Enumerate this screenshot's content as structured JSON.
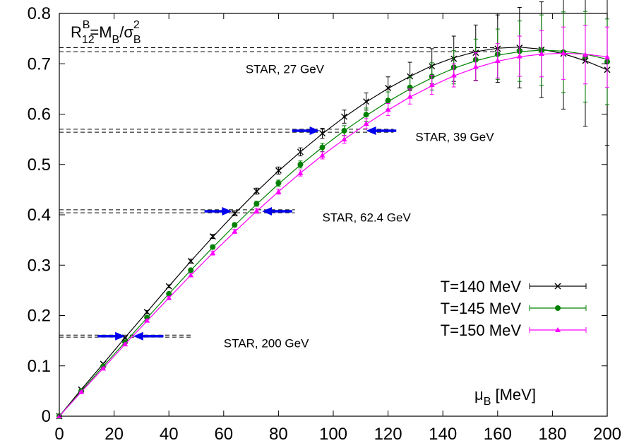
{
  "chart_data": {
    "type": "line",
    "title_parts": {
      "base": "R",
      "sub": "12",
      "sup": "B",
      "eq": "=M",
      "eq_sub": "B",
      "slash": "/σ",
      "sig_sup": "2",
      "sig_sub": "B"
    },
    "xlabel_parts": {
      "base": "μ",
      "sub": "B",
      "unit": " [MeV]"
    },
    "xlim": [
      0,
      200
    ],
    "ylim": [
      0,
      0.8
    ],
    "xticks": [
      "0",
      "20",
      "40",
      "60",
      "80",
      "100",
      "120",
      "140",
      "160",
      "180",
      "200"
    ],
    "yticks": [
      "0",
      "0.1",
      "0.2",
      "0.3",
      "0.4",
      "0.5",
      "0.6",
      "0.7",
      "0.8"
    ],
    "grid": false,
    "legend_position": "right",
    "series": [
      {
        "name": "T=140 MeV",
        "color": "#000000",
        "marker": "cross",
        "x": [
          0,
          8,
          16,
          24,
          32,
          40,
          48,
          56,
          64,
          72,
          80,
          88,
          96,
          104,
          112,
          120,
          128,
          136,
          144,
          152,
          160,
          168,
          176,
          184,
          192,
          200
        ],
        "y": [
          0,
          0.053,
          0.104,
          0.156,
          0.207,
          0.258,
          0.308,
          0.357,
          0.403,
          0.447,
          0.488,
          0.525,
          0.562,
          0.595,
          0.625,
          0.652,
          0.675,
          0.695,
          0.71,
          0.722,
          0.73,
          0.732,
          0.728,
          0.72,
          0.706,
          0.688
        ],
        "err": [
          0,
          0.001,
          0.002,
          0.002,
          0.003,
          0.003,
          0.004,
          0.004,
          0.005,
          0.006,
          0.007,
          0.008,
          0.01,
          0.013,
          0.017,
          0.022,
          0.028,
          0.035,
          0.045,
          0.055,
          0.067,
          0.08,
          0.095,
          0.11,
          0.13,
          0.15
        ],
        "curve_y": [
          0,
          0.053,
          0.104,
          0.156,
          0.207,
          0.258,
          0.308,
          0.356,
          0.402,
          0.446,
          0.487,
          0.525,
          0.561,
          0.594,
          0.624,
          0.651,
          0.675,
          0.696,
          0.712,
          0.724,
          0.731,
          0.733,
          0.729,
          0.72,
          0.706,
          0.688
        ]
      },
      {
        "name": "T=145 MeV",
        "color": "#008000",
        "marker": "circle",
        "x": [
          0,
          8,
          16,
          24,
          32,
          40,
          48,
          56,
          64,
          72,
          80,
          88,
          96,
          104,
          112,
          120,
          128,
          136,
          144,
          152,
          160,
          168,
          176,
          184,
          192,
          200
        ],
        "y": [
          0,
          0.05,
          0.099,
          0.147,
          0.196,
          0.243,
          0.29,
          0.336,
          0.38,
          0.422,
          0.463,
          0.5,
          0.534,
          0.567,
          0.599,
          0.627,
          0.653,
          0.675,
          0.693,
          0.708,
          0.719,
          0.725,
          0.727,
          0.723,
          0.714,
          0.704
        ],
        "err": [
          0,
          0.001,
          0.002,
          0.002,
          0.003,
          0.003,
          0.003,
          0.004,
          0.004,
          0.005,
          0.006,
          0.007,
          0.008,
          0.01,
          0.013,
          0.017,
          0.021,
          0.027,
          0.033,
          0.041,
          0.05,
          0.06,
          0.07,
          0.08,
          0.09,
          0.085
        ],
        "curve_y": [
          0,
          0.05,
          0.099,
          0.147,
          0.195,
          0.243,
          0.29,
          0.335,
          0.379,
          0.421,
          0.461,
          0.499,
          0.534,
          0.567,
          0.597,
          0.625,
          0.65,
          0.672,
          0.691,
          0.706,
          0.717,
          0.724,
          0.727,
          0.725,
          0.719,
          0.709
        ]
      },
      {
        "name": "T=150 MeV",
        "color": "#ff00ff",
        "marker": "triangle",
        "x": [
          0,
          8,
          16,
          24,
          32,
          40,
          48,
          56,
          64,
          72,
          80,
          88,
          96,
          104,
          112,
          120,
          128,
          136,
          144,
          152,
          160,
          168,
          176,
          184,
          192,
          200
        ],
        "y": [
          0,
          0.048,
          0.095,
          0.143,
          0.19,
          0.235,
          0.28,
          0.324,
          0.367,
          0.408,
          0.446,
          0.483,
          0.518,
          0.55,
          0.581,
          0.609,
          0.635,
          0.658,
          0.677,
          0.694,
          0.706,
          0.715,
          0.72,
          0.721,
          0.718,
          0.713
        ],
        "err": [
          0,
          0.001,
          0.001,
          0.002,
          0.002,
          0.003,
          0.003,
          0.004,
          0.004,
          0.005,
          0.005,
          0.006,
          0.007,
          0.008,
          0.01,
          0.012,
          0.015,
          0.019,
          0.023,
          0.028,
          0.034,
          0.04,
          0.046,
          0.052,
          0.058,
          0.06
        ],
        "curve_y": [
          0,
          0.048,
          0.095,
          0.143,
          0.189,
          0.235,
          0.28,
          0.324,
          0.366,
          0.407,
          0.446,
          0.483,
          0.518,
          0.55,
          0.58,
          0.608,
          0.634,
          0.656,
          0.676,
          0.692,
          0.705,
          0.714,
          0.719,
          0.721,
          0.719,
          0.714
        ]
      }
    ],
    "star_bands": [
      {
        "label": "STAR, 27 GeV",
        "y_lo": 0.724,
        "y_hi": 0.732,
        "x_from": 0,
        "x_to": 160,
        "label_x": 68,
        "label_y": 0.69
      },
      {
        "label": "STAR, 39 GeV",
        "y_lo": 0.564,
        "y_hi": 0.57,
        "x_from": 0,
        "x_to": 122,
        "label_x": 130,
        "label_y": 0.555
      },
      {
        "label": "STAR, 62.4 GeV",
        "y_lo": 0.404,
        "y_hi": 0.41,
        "x_from": 0,
        "x_to": 86,
        "label_x": 96,
        "label_y": 0.395
      },
      {
        "label": "STAR, 200 GeV",
        "y_lo": 0.157,
        "y_hi": 0.161,
        "x_from": 0,
        "x_to": 48,
        "label_x": 60,
        "label_y": 0.145
      }
    ],
    "arrows": [
      {
        "y": 0.567,
        "x_from": 85,
        "x_to": 95,
        "dir": "right"
      },
      {
        "y": 0.567,
        "x_from": 123,
        "x_to": 112,
        "dir": "left"
      },
      {
        "y": 0.407,
        "x_from": 53,
        "x_to": 63,
        "dir": "right"
      },
      {
        "y": 0.407,
        "x_from": 85,
        "x_to": 74,
        "dir": "left"
      },
      {
        "y": 0.159,
        "x_from": 14,
        "x_to": 24,
        "dir": "right"
      },
      {
        "y": 0.159,
        "x_from": 38,
        "x_to": 27,
        "dir": "left"
      }
    ],
    "colors": {
      "arrow": "#0000ee",
      "dash": "#000000"
    }
  }
}
